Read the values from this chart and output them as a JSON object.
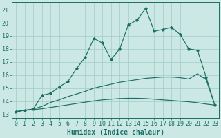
{
  "xlabel": "Humidex (Indice chaleur)",
  "bg_color": "#cce8e4",
  "grid_color": "#a0ccc8",
  "line_color": "#1a6e65",
  "xlim": [
    -0.5,
    23.5
  ],
  "ylim": [
    12.7,
    21.6
  ],
  "xticks": [
    0,
    1,
    2,
    3,
    4,
    5,
    6,
    7,
    8,
    9,
    10,
    11,
    12,
    13,
    14,
    15,
    16,
    17,
    18,
    19,
    20,
    21,
    22,
    23
  ],
  "yticks": [
    13,
    14,
    15,
    16,
    17,
    18,
    19,
    20,
    21
  ],
  "line1_x": [
    0,
    1,
    2,
    3,
    4,
    5,
    6,
    7,
    8,
    9,
    10,
    11,
    12,
    13,
    14,
    15,
    16,
    17,
    18,
    19,
    20,
    21,
    22,
    23
  ],
  "line1_y": [
    13.2,
    13.3,
    13.4,
    14.45,
    14.6,
    15.1,
    15.5,
    16.5,
    17.35,
    18.8,
    18.45,
    17.2,
    18.0,
    19.85,
    20.2,
    21.1,
    19.35,
    19.5,
    19.65,
    19.1,
    18.0,
    17.9,
    15.85,
    13.7
  ],
  "line2_x": [
    0,
    1,
    2,
    3,
    4,
    5,
    6,
    7,
    8,
    9,
    10,
    11,
    12,
    13,
    14,
    15,
    16,
    17,
    18,
    19,
    20,
    21,
    22,
    23
  ],
  "line2_y": [
    13.2,
    13.3,
    13.4,
    13.6,
    13.9,
    14.1,
    14.35,
    14.55,
    14.75,
    15.0,
    15.15,
    15.3,
    15.45,
    15.55,
    15.65,
    15.75,
    15.8,
    15.85,
    15.85,
    15.8,
    15.7,
    16.1,
    15.65,
    13.7
  ],
  "line3_x": [
    0,
    1,
    2,
    3,
    4,
    5,
    6,
    7,
    8,
    9,
    10,
    11,
    12,
    13,
    14,
    15,
    16,
    17,
    18,
    19,
    20,
    21,
    22,
    23
  ],
  "line3_y": [
    13.2,
    13.3,
    13.35,
    13.42,
    13.52,
    13.62,
    13.72,
    13.82,
    13.92,
    14.02,
    14.1,
    14.15,
    14.2,
    14.22,
    14.22,
    14.2,
    14.15,
    14.1,
    14.05,
    14.0,
    13.95,
    13.88,
    13.78,
    13.7
  ],
  "line_width": 0.85,
  "marker_size": 2.8,
  "xlabel_fontsize": 7,
  "tick_fontsize": 6
}
